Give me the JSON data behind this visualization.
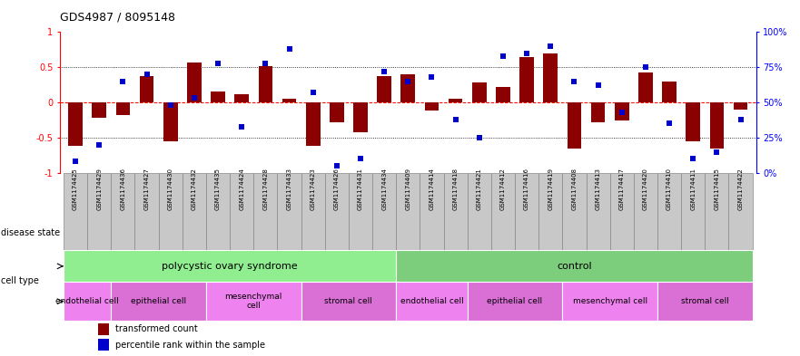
{
  "title": "GDS4987 / 8095148",
  "samples": [
    "GSM1174425",
    "GSM1174429",
    "GSM1174436",
    "GSM1174427",
    "GSM1174430",
    "GSM1174432",
    "GSM1174435",
    "GSM1174424",
    "GSM1174428",
    "GSM1174433",
    "GSM1174423",
    "GSM1174426",
    "GSM1174431",
    "GSM1174434",
    "GSM1174409",
    "GSM1174414",
    "GSM1174418",
    "GSM1174421",
    "GSM1174412",
    "GSM1174416",
    "GSM1174419",
    "GSM1174408",
    "GSM1174413",
    "GSM1174417",
    "GSM1174420",
    "GSM1174410",
    "GSM1174411",
    "GSM1174415",
    "GSM1174422"
  ],
  "bar_values": [
    -0.62,
    -0.22,
    -0.18,
    0.38,
    -0.55,
    0.57,
    0.15,
    0.12,
    0.52,
    0.05,
    -0.62,
    -0.28,
    -0.42,
    0.38,
    0.4,
    -0.12,
    0.05,
    0.28,
    0.22,
    0.65,
    0.7,
    -0.65,
    -0.28,
    -0.26,
    0.42,
    0.3,
    -0.55,
    -0.65,
    -0.1
  ],
  "blue_values": [
    0.08,
    0.2,
    0.65,
    0.7,
    0.48,
    0.53,
    0.78,
    0.33,
    0.78,
    0.88,
    0.57,
    0.05,
    0.1,
    0.72,
    0.65,
    0.68,
    0.38,
    0.25,
    0.83,
    0.85,
    0.9,
    0.65,
    0.62,
    0.43,
    0.75,
    0.35,
    0.1,
    0.15,
    0.38
  ],
  "disease_state_groups": [
    {
      "label": "polycystic ovary syndrome",
      "start": 0,
      "end": 14,
      "color": "#90ee90"
    },
    {
      "label": "control",
      "start": 14,
      "end": 29,
      "color": "#7ccd7c"
    }
  ],
  "cell_type_groups": [
    {
      "label": "endothelial cell",
      "start": 0,
      "end": 2,
      "color": "#ee82ee"
    },
    {
      "label": "epithelial cell",
      "start": 2,
      "end": 6,
      "color": "#da70d6"
    },
    {
      "label": "mesenchymal\ncell",
      "start": 6,
      "end": 10,
      "color": "#ee82ee"
    },
    {
      "label": "stromal cell",
      "start": 10,
      "end": 14,
      "color": "#da70d6"
    },
    {
      "label": "endothelial cell",
      "start": 14,
      "end": 17,
      "color": "#ee82ee"
    },
    {
      "label": "epithelial cell",
      "start": 17,
      "end": 21,
      "color": "#da70d6"
    },
    {
      "label": "mesenchymal cell",
      "start": 21,
      "end": 25,
      "color": "#ee82ee"
    },
    {
      "label": "stromal cell",
      "start": 25,
      "end": 29,
      "color": "#da70d6"
    }
  ],
  "bar_color": "#8B0000",
  "blue_color": "#0000CD",
  "background_color": "#ffffff",
  "ylim": [
    -1,
    1
  ],
  "right_ylim": [
    0,
    100
  ],
  "right_yticks": [
    0,
    25,
    50,
    75,
    100
  ],
  "right_yticklabels": [
    "0%",
    "25%",
    "50%",
    "75%",
    "100%"
  ],
  "left_yticks": [
    -1,
    -0.5,
    0,
    0.5,
    1
  ],
  "left_yticklabels": [
    "-1",
    "-0.5",
    "0",
    "0.5",
    "1"
  ],
  "hlines_dotted": [
    -0.5,
    0.5
  ],
  "hline_zero": 0,
  "disease_state_label": "disease state",
  "cell_type_label": "cell type",
  "legend_red": "transformed count",
  "legend_blue": "percentile rank within the sample",
  "sample_box_color": "#c8c8c8",
  "sample_box_edge": "#888888"
}
